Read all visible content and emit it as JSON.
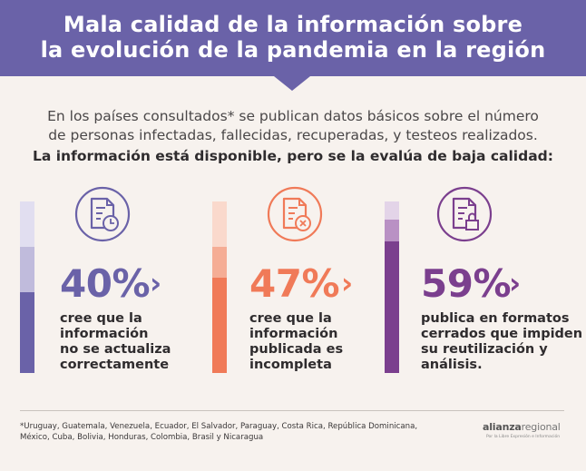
{
  "header": {
    "title_line1": "Mala calidad de la información sobre",
    "title_line2": "la evolución de la pandemia en la región"
  },
  "intro": {
    "line1": "En los países consultados* se publican datos básicos sobre el número",
    "line2": "de personas infectadas, fallecidas, recuperadas, y testeos realizados.",
    "line3": "La información está disponible, pero se la evalúa de baja calidad:"
  },
  "stats": [
    {
      "percent_label": "40%",
      "value": 40,
      "color": "#6a62a8",
      "icon": "document-clock-icon",
      "desc": [
        "cree que la",
        "información",
        "no se actualiza",
        "correctamente"
      ]
    },
    {
      "percent_label": "47%",
      "value": 47,
      "color": "#f07a58",
      "icon": "document-x-icon",
      "desc": [
        "cree que la",
        "información",
        "publicada es",
        "incompleta"
      ]
    },
    {
      "percent_label": "59%",
      "value": 59,
      "color": "#7b3f8e",
      "icon": "document-lock-icon",
      "desc": [
        "publica en formatos",
        "cerrados que impiden",
        "su reutilización y",
        "análisis."
      ]
    }
  ],
  "chevron": "›",
  "footnote": {
    "line1": "*Uruguay, Guatemala, Venezuela, Ecuador, El Salvador, Paraguay, Costa Rica, República Dominicana,",
    "line2": "México, Cuba, Bolivia, Honduras, Colombia, Brasil y Nicaragua"
  },
  "logo": {
    "name": "alianza",
    "name_suffix": "regional",
    "tagline": "Por la Libre Expresión e Información"
  }
}
